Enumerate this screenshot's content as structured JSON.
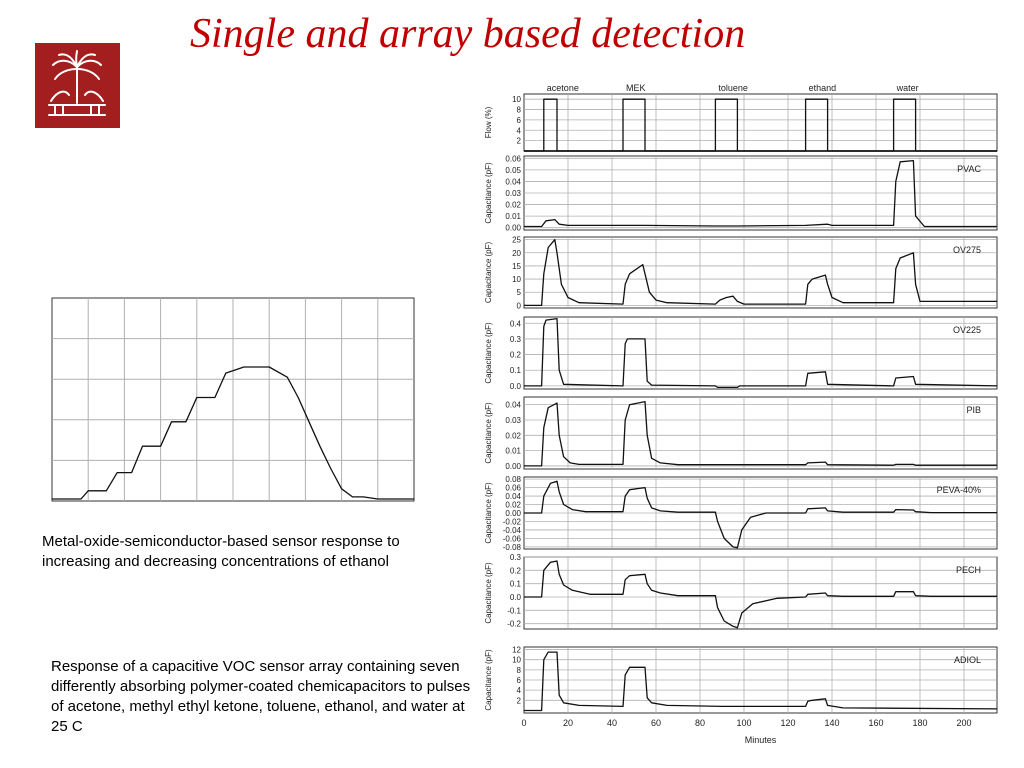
{
  "slide": {
    "title": "Single and array based detection",
    "caption_mos": "Metal-oxide-semiconductor-based sensor response to increasing and decreasing concentrations of ethanol",
    "caption_array": "Response of a capacitive VOC sensor array containing seven differently absorbing polymer-coated chemicapacitors to pulses of acetone, methyl ethyl ketone, toluene, ethanol, and water at 25 C",
    "logo_icon": "palmetto-tree-logo-icon",
    "colors": {
      "title": "#c00000",
      "logo_bg": "#a31f1f",
      "trace": "#111111",
      "grid": "#b0b0b0"
    }
  },
  "chart_data": [
    {
      "type": "line",
      "title": "",
      "xlabel": "",
      "ylabel": "",
      "grid": true,
      "xlim": [
        0,
        100
      ],
      "ylim": [
        0,
        100
      ],
      "series": [
        {
          "x": [
            0,
            8,
            10,
            15,
            18,
            22,
            25,
            30,
            33,
            37,
            40,
            45,
            48,
            53,
            60,
            65,
            68,
            71,
            74,
            77,
            80,
            83,
            86,
            90,
            94,
            100
          ],
          "values": [
            1,
            1,
            5,
            5,
            14,
            14,
            27,
            27,
            39,
            39,
            51,
            51,
            63,
            66,
            66,
            61,
            51,
            39,
            27,
            16,
            6,
            2,
            2,
            1,
            1,
            1
          ]
        }
      ]
    },
    {
      "type": "line",
      "xlabel": "Minutes",
      "x_ticks": [
        0,
        20,
        40,
        60,
        80,
        100,
        120,
        140,
        160,
        180,
        200
      ],
      "xlim": [
        0,
        215
      ],
      "grid": true,
      "annotations": [
        "acetone",
        "MEK",
        "toluene",
        "ethand",
        "water"
      ],
      "panels": [
        {
          "ylabel": "Flow (%)",
          "sensor": "",
          "ylim": [
            0,
            11
          ],
          "ticks": [
            "10",
            "8",
            "6",
            "4",
            "2"
          ],
          "tick_values": [
            10,
            8,
            6,
            4,
            2
          ],
          "traces": [
            {
              "x": [
                0,
                9,
                9,
                15,
                15,
                215
              ],
              "y": [
                0,
                0,
                10,
                10,
                0,
                0
              ]
            },
            {
              "x": [
                0,
                45,
                45,
                55,
                55,
                215
              ],
              "y": [
                0,
                0,
                10,
                10,
                0,
                0
              ]
            },
            {
              "x": [
                0,
                87,
                87,
                97,
                97,
                215
              ],
              "y": [
                0,
                0,
                10,
                10,
                0,
                0
              ]
            },
            {
              "x": [
                0,
                128,
                128,
                138,
                138,
                215
              ],
              "y": [
                0,
                0,
                10,
                10,
                0,
                0
              ]
            },
            {
              "x": [
                0,
                168,
                168,
                178,
                178,
                215
              ],
              "y": [
                0,
                0,
                10,
                10,
                0,
                0
              ]
            }
          ]
        },
        {
          "ylabel": "Capacitance (pF)",
          "sensor": "PVAC",
          "ylim": [
            -0.002,
            0.062
          ],
          "ticks": [
            "0.06",
            "0.05",
            "0.04",
            "0.03",
            "0.02",
            "0.01",
            "0.00"
          ],
          "tick_values": [
            0.06,
            0.05,
            0.04,
            0.03,
            0.02,
            0.01,
            0
          ],
          "traces": [
            {
              "x": [
                0,
                8,
                10,
                14,
                16,
                20,
                45,
                55,
                87,
                97,
                128,
                138,
                140,
                168,
                169,
                171,
                177,
                178,
                182,
                215
              ],
              "y": [
                0.001,
                0.001,
                0.006,
                0.007,
                0.003,
                0.002,
                0.002,
                0.002,
                0.0015,
                0.0015,
                0.002,
                0.003,
                0.002,
                0.002,
                0.04,
                0.057,
                0.058,
                0.01,
                0.001,
                0.001
              ]
            }
          ]
        },
        {
          "ylabel": "Capacitance (pF)",
          "sensor": "OV275",
          "ylim": [
            -1,
            26
          ],
          "ticks": [
            "25",
            "20",
            "15",
            "10",
            "5",
            "0"
          ],
          "tick_values": [
            25,
            20,
            15,
            10,
            5,
            0
          ],
          "traces": [
            {
              "x": [
                0,
                8,
                9,
                11,
                14,
                15,
                17,
                20,
                25,
                45,
                46,
                48,
                54,
                55,
                57,
                60,
                65,
                87,
                89,
                92,
                95,
                97,
                100,
                128,
                129,
                131,
                137,
                138,
                140,
                145,
                168,
                169,
                171,
                177,
                178,
                180,
                215
              ],
              "y": [
                0,
                0,
                12,
                22,
                25,
                20,
                8,
                3,
                1,
                0.5,
                8,
                12,
                15.5,
                12,
                5,
                2,
                1,
                0.5,
                2,
                3,
                3.5,
                1.5,
                0.5,
                0.5,
                8,
                10,
                11.5,
                8,
                3,
                1,
                1,
                14,
                18,
                20,
                8,
                1.5,
                1.5
              ]
            }
          ]
        },
        {
          "ylabel": "Capacitance (pF)",
          "sensor": "OV225",
          "ylim": [
            -0.02,
            0.44
          ],
          "ticks": [
            "0.4",
            "0.3",
            "0.2",
            "0.1",
            "0.0"
          ],
          "tick_values": [
            0.4,
            0.3,
            0.2,
            0.1,
            0
          ],
          "traces": [
            {
              "x": [
                0,
                8,
                9,
                10,
                15,
                16,
                18,
                45,
                46,
                47,
                55,
                56,
                58,
                87,
                88,
                97,
                98,
                128,
                129,
                137,
                138,
                168,
                169,
                177,
                178,
                215
              ],
              "y": [
                0,
                0,
                0.38,
                0.42,
                0.43,
                0.1,
                0.01,
                0,
                0.27,
                0.3,
                0.3,
                0.03,
                0.005,
                0,
                -0.01,
                -0.01,
                0,
                0,
                0.08,
                0.09,
                0.01,
                0,
                0.05,
                0.06,
                0.01,
                0
              ]
            }
          ]
        },
        {
          "ylabel": "Capacitance (pF)",
          "sensor": "PIB",
          "ylim": [
            -0.002,
            0.045
          ],
          "ticks": [
            "0.04",
            "0.03",
            "0.02",
            "0.01",
            "0.00"
          ],
          "tick_values": [
            0.04,
            0.03,
            0.02,
            0.01,
            0
          ],
          "traces": [
            {
              "x": [
                0,
                8,
                9,
                11,
                15,
                16,
                18,
                21,
                25,
                45,
                46,
                48,
                55,
                56,
                58,
                62,
                70,
                128,
                129,
                137,
                138,
                168,
                169,
                177,
                178,
                215
              ],
              "y": [
                0,
                0,
                0.025,
                0.038,
                0.041,
                0.02,
                0.006,
                0.002,
                0.001,
                0.001,
                0.03,
                0.04,
                0.042,
                0.02,
                0.005,
                0.002,
                0.0008,
                0.0008,
                0.002,
                0.0025,
                0.0008,
                0.0005,
                0.001,
                0.001,
                0.0005,
                0.0005
              ]
            }
          ]
        },
        {
          "ylabel": "Capacitance (pF)",
          "sensor": "PEVA-40%",
          "ylim": [
            -0.085,
            0.085
          ],
          "ticks": [
            "0.08",
            "0.06",
            "0.04",
            "0.02",
            "0.00",
            "-0.02",
            "-0.04",
            "-0.06",
            "-0.08"
          ],
          "tick_values": [
            0.08,
            0.06,
            0.04,
            0.02,
            0,
            -0.02,
            -0.04,
            -0.06,
            -0.08
          ],
          "traces": [
            {
              "x": [
                0,
                8,
                9,
                12,
                15,
                16,
                18,
                22,
                28,
                45,
                46,
                48,
                55,
                56,
                58,
                62,
                70,
                87,
                88,
                91,
                95,
                97,
                99,
                103,
                110,
                128,
                129,
                137,
                138,
                145,
                168,
                169,
                177,
                178,
                185,
                215
              ],
              "y": [
                0,
                0,
                0.04,
                0.07,
                0.075,
                0.05,
                0.02,
                0.008,
                0.003,
                0.003,
                0.04,
                0.055,
                0.06,
                0.035,
                0.012,
                0.005,
                0.002,
                0.002,
                -0.02,
                -0.06,
                -0.08,
                -0.082,
                -0.04,
                -0.01,
                0,
                0,
                0.01,
                0.012,
                0.005,
                0.002,
                0.002,
                0.008,
                0.007,
                0.003,
                0.001,
                0.001
              ]
            }
          ]
        },
        {
          "ylabel": "Capacitance (pF)",
          "sensor": "PECH",
          "ylim": [
            -0.24,
            0.3
          ],
          "ticks": [
            "0.3",
            "0.2",
            "0.1",
            "0.0",
            "-0.1",
            "-0.2"
          ],
          "tick_values": [
            0.3,
            0.2,
            0.1,
            0,
            -0.1,
            -0.2
          ],
          "traces": [
            {
              "x": [
                0,
                8,
                9,
                12,
                15,
                16,
                18,
                22,
                30,
                45,
                46,
                48,
                55,
                56,
                58,
                62,
                70,
                87,
                88,
                91,
                95,
                97,
                99,
                104,
                115,
                128,
                129,
                137,
                138,
                145,
                168,
                169,
                177,
                178,
                185,
                215
              ],
              "y": [
                0,
                0,
                0.2,
                0.26,
                0.27,
                0.17,
                0.09,
                0.05,
                0.02,
                0.02,
                0.13,
                0.16,
                0.17,
                0.1,
                0.05,
                0.03,
                0.01,
                0.01,
                -0.08,
                -0.18,
                -0.22,
                -0.23,
                -0.12,
                -0.05,
                -0.01,
                0,
                0.02,
                0.03,
                0.01,
                0.005,
                0.005,
                0.04,
                0.04,
                0.01,
                0.005,
                0.005
              ]
            }
          ]
        },
        {
          "ylabel": "Capacitance (pF)",
          "sensor": "ADIOL",
          "ylim": [
            -0.5,
            12.5
          ],
          "ticks": [
            "12",
            "10",
            "8",
            "6",
            "4",
            "2"
          ],
          "tick_values": [
            12,
            10,
            8,
            6,
            4,
            2
          ],
          "traces": [
            {
              "x": [
                0,
                8,
                9,
                11,
                15,
                16,
                18,
                25,
                45,
                46,
                48,
                55,
                56,
                58,
                65,
                90,
                128,
                129,
                131,
                137,
                138,
                145,
                215
              ],
              "y": [
                0,
                0,
                10,
                11.5,
                11.5,
                3,
                1.5,
                1,
                0.8,
                7,
                8.5,
                8.5,
                2.5,
                1.5,
                1,
                0.8,
                0.8,
                1.8,
                2,
                2.3,
                1,
                0.5,
                0.3
              ]
            }
          ]
        }
      ]
    }
  ]
}
